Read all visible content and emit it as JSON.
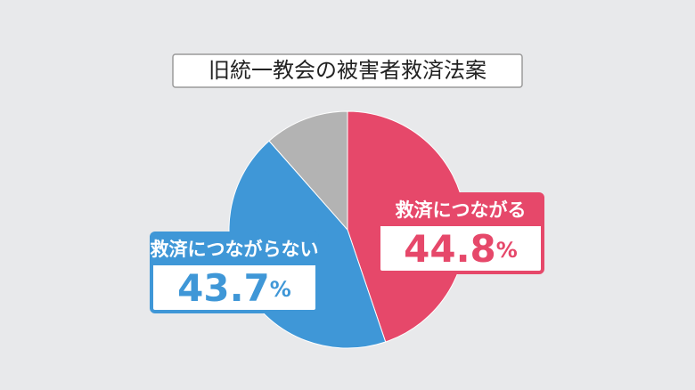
{
  "chart_data": {
    "type": "pie",
    "title": "旧統一教会の被害者救済法案",
    "categories": [
      "救済につながる",
      "救済につながらない",
      null
    ],
    "values": [
      44.8,
      43.7,
      11.5
    ],
    "value_labels": [
      "44.8%",
      "43.7%",
      null
    ],
    "colors": [
      "#e6486a",
      "#3f97d7",
      "#b3b3b3"
    ]
  }
}
